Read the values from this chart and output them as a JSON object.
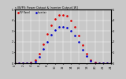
{
  "title": "s IW/PV: Power Output & Inverter Output [W]",
  "legend_labels": [
    "PV Panel",
    "Inverter"
  ],
  "x_values": [
    0,
    1,
    2,
    3,
    4,
    5,
    6,
    7,
    8,
    9,
    10,
    11,
    12,
    13,
    14,
    15,
    16,
    17,
    18,
    19,
    20,
    21,
    22,
    23,
    24
  ],
  "pv_power": [
    0,
    0,
    0,
    0,
    5,
    30,
    90,
    180,
    270,
    350,
    410,
    445,
    450,
    440,
    400,
    340,
    260,
    170,
    90,
    30,
    5,
    0,
    0,
    0,
    0
  ],
  "inv_power": [
    0,
    0,
    0,
    0,
    3,
    18,
    60,
    130,
    200,
    265,
    310,
    335,
    340,
    330,
    300,
    255,
    195,
    125,
    65,
    20,
    3,
    0,
    0,
    0,
    0
  ],
  "pv_color": "#dd0000",
  "inv_color": "#0000cc",
  "bg_color": "#c8c8c8",
  "grid_color": "#ffffff",
  "ylim": [
    0,
    500
  ],
  "yticks_left": [
    0,
    100,
    200,
    300,
    400,
    500
  ],
  "ytick_labels_left": [
    "0",
    "1",
    "2",
    "3",
    "4",
    "5"
  ],
  "yticks_right": [
    0,
    100,
    200,
    300,
    400,
    500
  ],
  "ytick_labels_right": [
    "0",
    "1",
    "2",
    "3",
    "4",
    "5"
  ],
  "xlim": [
    0,
    24
  ],
  "xticks": [
    0,
    2,
    4,
    6,
    8,
    10,
    12,
    14,
    16,
    18,
    20,
    22,
    24
  ],
  "figsize": [
    1.6,
    1.0
  ],
  "dpi": 100
}
